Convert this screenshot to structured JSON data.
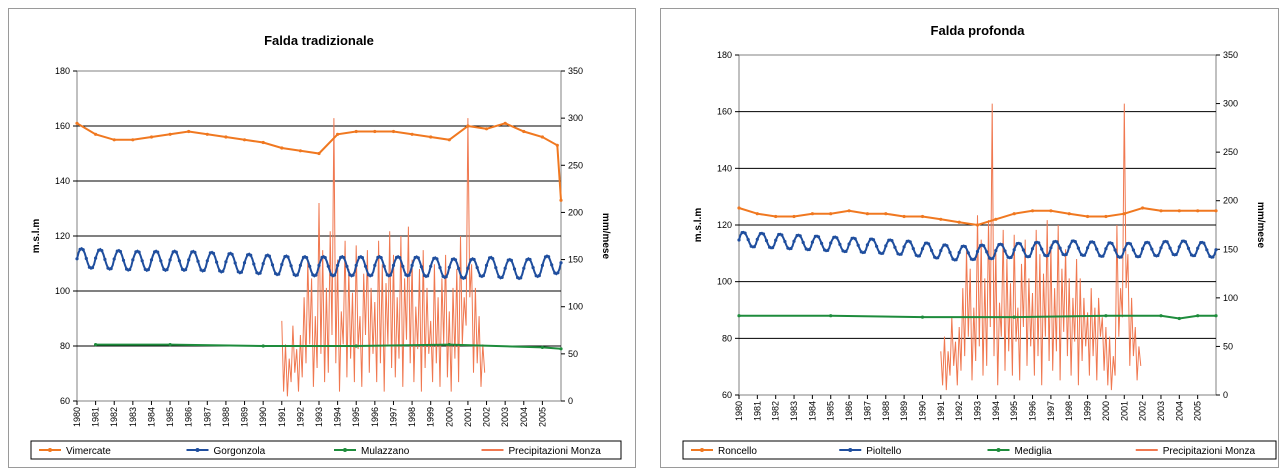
{
  "chart_data": [
    {
      "type": "line",
      "title": "Falda tradizionale",
      "ylabel": "m.s.l.m",
      "y2label": "mm/mese",
      "ylim": [
        60,
        180
      ],
      "yticks": [
        60,
        80,
        100,
        120,
        140,
        160,
        180
      ],
      "y2lim": [
        0,
        350
      ],
      "y2ticks": [
        0,
        50,
        100,
        150,
        200,
        250,
        300,
        350
      ],
      "xlim": [
        1980,
        2006
      ],
      "x_ticks": [
        "1980",
        "1981",
        "1982",
        "1983",
        "1984",
        "1985",
        "1986",
        "1987",
        "1988",
        "1989",
        "1990",
        "1991",
        "1992",
        "1993",
        "1994",
        "1995",
        "1996",
        "1997",
        "1998",
        "1999",
        "2000",
        "2001",
        "2002",
        "2003",
        "2004",
        "2005"
      ],
      "grid": true,
      "legend_position": "bottom",
      "series": [
        {
          "name": "Vimercate",
          "axis": "left",
          "color": "#f07820",
          "marker": "circle",
          "x": [
            1980,
            1981,
            1982,
            1983,
            1984,
            1985,
            1986,
            1987,
            1988,
            1989,
            1990,
            1991,
            1992,
            1993,
            1994,
            1995,
            1996,
            1997,
            1998,
            1999,
            2000,
            2001,
            2002,
            2003,
            2004,
            2005,
            2005.8,
            2006
          ],
          "y": [
            161,
            157,
            155,
            155,
            156,
            157,
            158,
            157,
            156,
            155,
            154,
            152,
            151,
            150,
            157,
            158,
            158,
            158,
            157,
            156,
            155,
            160,
            159,
            161,
            158,
            156,
            153,
            133
          ]
        },
        {
          "name": "Gorgonzola",
          "axis": "left",
          "color": "#1f4e9e",
          "marker": "diamond",
          "seasonal": 3.5,
          "x": [
            1980,
            1983,
            1986,
            1989,
            1992,
            1995,
            1998,
            2001,
            2002,
            2003,
            2004,
            2005,
            2006
          ],
          "y": [
            112,
            111,
            111,
            110,
            109,
            109,
            109,
            108,
            109,
            108,
            108,
            109,
            110
          ]
        },
        {
          "name": "Mulazzano",
          "axis": "left",
          "color": "#1e8c3c",
          "marker": "triangle",
          "x": [
            1981,
            1985,
            1990,
            1995,
            2000,
            2005,
            2006
          ],
          "y": [
            80.5,
            80.5,
            80,
            80,
            80.5,
            79.5,
            79
          ]
        },
        {
          "name": "Precipitazioni Monza",
          "axis": "right",
          "color": "#f07850",
          "marker": "none",
          "x": [
            1991.0,
            1991.1,
            1991.2,
            1991.3,
            1991.4,
            1991.5,
            1991.6,
            1991.7,
            1991.8,
            1991.9,
            1992.0,
            1992.1,
            1992.2,
            1992.3,
            1992.4,
            1992.5,
            1992.6,
            1992.7,
            1992.8,
            1992.9,
            1993.0,
            1993.1,
            1993.2,
            1993.3,
            1993.4,
            1993.5,
            1993.6,
            1993.7,
            1993.8,
            1993.9,
            1994.0,
            1994.1,
            1994.2,
            1994.3,
            1994.4,
            1994.5,
            1994.6,
            1994.7,
            1994.8,
            1994.9,
            1995.0,
            1995.1,
            1995.2,
            1995.3,
            1995.4,
            1995.5,
            1995.6,
            1995.7,
            1995.8,
            1995.9,
            1996.0,
            1996.1,
            1996.2,
            1996.3,
            1996.4,
            1996.5,
            1996.6,
            1996.7,
            1996.8,
            1996.9,
            1997.0,
            1997.1,
            1997.2,
            1997.3,
            1997.4,
            1997.5,
            1997.6,
            1997.7,
            1997.8,
            1997.9,
            1998.0,
            1998.1,
            1998.2,
            1998.3,
            1998.4,
            1998.5,
            1998.6,
            1998.7,
            1998.8,
            1998.9,
            1999.0,
            1999.1,
            1999.2,
            1999.3,
            1999.4,
            1999.5,
            1999.6,
            1999.7,
            1999.8,
            1999.9,
            2000.0,
            2000.1,
            2000.2,
            2000.3,
            2000.4,
            2000.5,
            2000.6,
            2000.7,
            2000.8,
            2000.9,
            2001.0,
            2001.1,
            2001.2,
            2001.3,
            2001.4,
            2001.5,
            2001.6,
            2001.7,
            2001.8,
            2001.9
          ],
          "y": [
            85,
            10,
            60,
            5,
            45,
            20,
            80,
            30,
            55,
            10,
            70,
            25,
            110,
            40,
            150,
            60,
            130,
            15,
            90,
            35,
            210,
            50,
            160,
            20,
            120,
            30,
            180,
            70,
            300,
            40,
            150,
            10,
            95,
            60,
            170,
            25,
            140,
            45,
            115,
            20,
            165,
            55,
            90,
            15,
            135,
            70,
            160,
            30,
            120,
            50,
            105,
            20,
            170,
            40,
            145,
            10,
            125,
            60,
            180,
            35,
            155,
            25,
            110,
            45,
            175,
            15,
            130,
            65,
            185,
            40,
            150,
            20,
            100,
            55,
            140,
            10,
            160,
            35,
            120,
            50,
            85,
            20,
            145,
            40,
            110,
            15,
            130,
            60,
            155,
            25,
            95,
            10,
            120,
            45,
            140,
            20,
            175,
            60,
            110,
            80,
            300,
            110,
            145,
            30,
            120,
            40,
            90,
            15,
            60,
            30
          ]
        }
      ]
    },
    {
      "type": "line",
      "title": "Falda profonda",
      "ylabel": "m.s.l.m",
      "y2label": "mm/mese",
      "ylim": [
        60,
        180
      ],
      "yticks": [
        60,
        80,
        100,
        120,
        140,
        160,
        180
      ],
      "y2lim": [
        0,
        350
      ],
      "y2ticks": [
        0,
        50,
        100,
        150,
        200,
        250,
        300,
        350
      ],
      "xlim": [
        1980,
        2006
      ],
      "x_ticks": [
        "1980",
        "1981",
        "1982",
        "1983",
        "1984",
        "1985",
        "1986",
        "1987",
        "1988",
        "1989",
        "1990",
        "1991",
        "1992",
        "1993",
        "1994",
        "1995",
        "1996",
        "1997",
        "1998",
        "1999",
        "2000",
        "2001",
        "2002",
        "2003",
        "2004",
        "2005"
      ],
      "grid": true,
      "legend_position": "bottom",
      "series": [
        {
          "name": "Roncello",
          "axis": "left",
          "color": "#f07820",
          "marker": "circle",
          "x": [
            1980,
            1981,
            1982,
            1983,
            1984,
            1985,
            1986,
            1987,
            1988,
            1989,
            1990,
            1991,
            1992,
            1993,
            1994,
            1995,
            1996,
            1997,
            1998,
            1999,
            2000,
            2001,
            2002,
            2003,
            2004,
            2005,
            2006
          ],
          "y": [
            126,
            124,
            123,
            123,
            124,
            124,
            125,
            124,
            124,
            123,
            123,
            122,
            121,
            120,
            122,
            124,
            125,
            125,
            124,
            123,
            123,
            124,
            126,
            125,
            125,
            125,
            125
          ]
        },
        {
          "name": "Pioltello",
          "axis": "left",
          "color": "#1f4e9e",
          "marker": "diamond",
          "seasonal": 2.5,
          "x": [
            1980,
            1983,
            1986,
            1989,
            1992,
            1995,
            1998,
            2001,
            2004,
            2006
          ],
          "y": [
            115,
            114,
            113,
            112,
            110,
            111,
            112,
            111,
            112,
            111
          ]
        },
        {
          "name": "Mediglia",
          "axis": "left",
          "color": "#1e8c3c",
          "marker": "triangle",
          "x": [
            1980,
            1985,
            1990,
            1995,
            2000,
            2003,
            2004,
            2005,
            2006
          ],
          "y": [
            88,
            88,
            87.5,
            87.5,
            88,
            88,
            87,
            88,
            88
          ]
        },
        {
          "name": "Precipitazioni Monza",
          "axis": "right",
          "color": "#f07850",
          "marker": "none",
          "x": [
            1991.0,
            1991.1,
            1991.2,
            1991.3,
            1991.4,
            1991.5,
            1991.6,
            1991.7,
            1991.8,
            1991.9,
            1992.0,
            1992.1,
            1992.2,
            1992.3,
            1992.4,
            1992.5,
            1992.6,
            1992.7,
            1992.8,
            1992.9,
            1993.0,
            1993.1,
            1993.2,
            1993.3,
            1993.4,
            1993.5,
            1993.6,
            1993.7,
            1993.8,
            1993.9,
            1994.0,
            1994.1,
            1994.2,
            1994.3,
            1994.4,
            1994.5,
            1994.6,
            1994.7,
            1994.8,
            1994.9,
            1995.0,
            1995.1,
            1995.2,
            1995.3,
            1995.4,
            1995.5,
            1995.6,
            1995.7,
            1995.8,
            1995.9,
            1996.0,
            1996.1,
            1996.2,
            1996.3,
            1996.4,
            1996.5,
            1996.6,
            1996.7,
            1996.8,
            1996.9,
            1997.0,
            1997.1,
            1997.2,
            1997.3,
            1997.4,
            1997.5,
            1997.6,
            1997.7,
            1997.8,
            1997.9,
            1998.0,
            1998.1,
            1998.2,
            1998.3,
            1998.4,
            1998.5,
            1998.6,
            1998.7,
            1998.8,
            1998.9,
            1999.0,
            1999.1,
            1999.2,
            1999.3,
            1999.4,
            1999.5,
            1999.6,
            1999.7,
            1999.8,
            1999.9,
            2000.0,
            2000.1,
            2000.2,
            2000.3,
            2000.4,
            2000.5,
            2000.6,
            2000.7,
            2000.8,
            2000.9,
            2001.0,
            2001.1,
            2001.2,
            2001.3,
            2001.4,
            2001.5,
            2001.6,
            2001.7,
            2001.8,
            2001.9
          ],
          "y": [
            45,
            10,
            60,
            5,
            45,
            20,
            80,
            30,
            55,
            10,
            70,
            25,
            110,
            40,
            150,
            60,
            130,
            15,
            90,
            35,
            185,
            50,
            160,
            20,
            120,
            30,
            180,
            70,
            300,
            40,
            150,
            10,
            95,
            60,
            170,
            25,
            140,
            45,
            115,
            20,
            165,
            55,
            90,
            15,
            135,
            70,
            160,
            30,
            120,
            50,
            105,
            20,
            170,
            40,
            145,
            10,
            125,
            60,
            180,
            35,
            155,
            25,
            110,
            45,
            175,
            15,
            130,
            65,
            150,
            40,
            120,
            20,
            100,
            55,
            140,
            10,
            120,
            35,
            100,
            50,
            85,
            20,
            110,
            40,
            90,
            15,
            100,
            60,
            80,
            25,
            70,
            10,
            60,
            5,
            40,
            20,
            175,
            60,
            110,
            80,
            300,
            110,
            145,
            30,
            100,
            40,
            70,
            15,
            50,
            30
          ]
        }
      ]
    }
  ]
}
